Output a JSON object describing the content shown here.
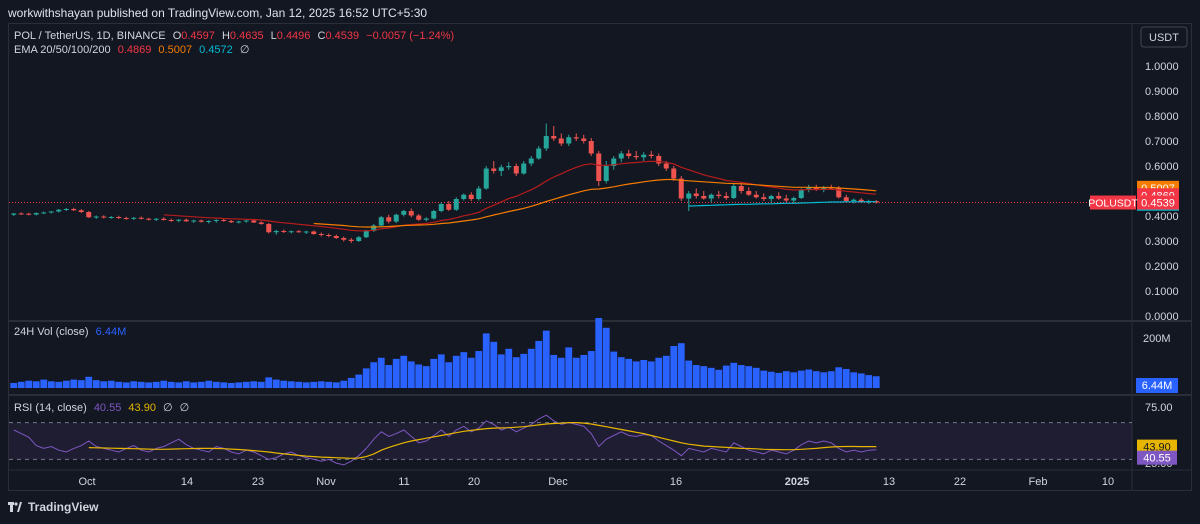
{
  "header": {
    "publisher": "workwithshayan published on TradingView.com, Jan 12, 2025 16:52 UTC+5:30"
  },
  "legend": {
    "symbol": "POL / TetherUS, 1D, BINANCE",
    "o_label": "O",
    "o_value": "0.4597",
    "h_label": "H",
    "h_value": "0.4635",
    "l_label": "L",
    "l_value": "0.4496",
    "c_label": "C",
    "c_value": "0.4539",
    "change": "−0.0057 (−1.24%)",
    "ema_label": "EMA 20/50/100/200",
    "ema20": "0.4869",
    "ema50": "0.5007",
    "ema100": "0.4572",
    "ema_null": "∅"
  },
  "currency_button": "USDT",
  "price_axis": {
    "ticks": [
      "1.0000",
      "0.9000",
      "0.8000",
      "0.7000",
      "0.6000",
      "0.5000",
      "0.4000",
      "0.3000",
      "0.2000",
      "0.1000",
      "0.0000"
    ],
    "badges": [
      {
        "text": "0.5007",
        "value": 0.5007,
        "color": "#f57c00"
      },
      {
        "text": "0.4869",
        "value": 0.4869,
        "color": "#f23645"
      },
      {
        "text": "0.4572",
        "value": 0.4572,
        "color": "#00bcd4"
      },
      {
        "text": "0.4539",
        "value": 0.4539,
        "color": "#f23645"
      }
    ],
    "last_label": "POLUSDT"
  },
  "volume": {
    "label": "24H Vol (close)",
    "value": "6.44M",
    "axis_tick": "200M",
    "last_badge": "6.44M"
  },
  "rsi": {
    "label": "RSI (14, close)",
    "value1": "40.55",
    "value2": "43.90",
    "null1": "∅",
    "null2": "∅",
    "axis_ticks": [
      "75.00",
      "25.00"
    ],
    "badge_ma": "43.90",
    "badge_rsi": "40.55"
  },
  "time_axis": [
    "Oct",
    "14",
    "23",
    "Nov",
    "11",
    "20",
    "Dec",
    "16",
    "2025",
    "13",
    "22",
    "Feb",
    "10"
  ],
  "footer": {
    "brand": "TradingView"
  },
  "colors": {
    "up": "#26a69a",
    "down": "#ef5350",
    "volume": "#2962ff",
    "ema20": "#b71c1c",
    "ema50": "#f57c00",
    "ema100": "#00bcd4",
    "rsi": "#7e57c2",
    "rsi_ma": "#e6b500"
  },
  "chart_data": {
    "type": "candlestick",
    "price_range": [
      0,
      1.0
    ],
    "volume_max_m": 250,
    "rsi_range": [
      0,
      100
    ],
    "start_date": "2024-09-28",
    "candles": [
      [
        0.405,
        0.412,
        0.4,
        0.41
      ],
      [
        0.41,
        0.415,
        0.405,
        0.409
      ],
      [
        0.409,
        0.413,
        0.403,
        0.406
      ],
      [
        0.406,
        0.414,
        0.402,
        0.412
      ],
      [
        0.412,
        0.418,
        0.408,
        0.414
      ],
      [
        0.414,
        0.42,
        0.41,
        0.418
      ],
      [
        0.418,
        0.428,
        0.414,
        0.425
      ],
      [
        0.425,
        0.432,
        0.42,
        0.428
      ],
      [
        0.428,
        0.433,
        0.42,
        0.423
      ],
      [
        0.423,
        0.427,
        0.412,
        0.416
      ],
      [
        0.416,
        0.42,
        0.392,
        0.395
      ],
      [
        0.395,
        0.402,
        0.388,
        0.398
      ],
      [
        0.398,
        0.403,
        0.39,
        0.394
      ],
      [
        0.394,
        0.4,
        0.389,
        0.396
      ],
      [
        0.396,
        0.401,
        0.388,
        0.392
      ],
      [
        0.392,
        0.397,
        0.385,
        0.39
      ],
      [
        0.39,
        0.396,
        0.384,
        0.393
      ],
      [
        0.393,
        0.398,
        0.386,
        0.389
      ],
      [
        0.389,
        0.393,
        0.382,
        0.386
      ],
      [
        0.386,
        0.392,
        0.38,
        0.389
      ],
      [
        0.389,
        0.395,
        0.382,
        0.384
      ],
      [
        0.384,
        0.39,
        0.377,
        0.381
      ],
      [
        0.381,
        0.388,
        0.375,
        0.385
      ],
      [
        0.385,
        0.39,
        0.376,
        0.379
      ],
      [
        0.379,
        0.385,
        0.372,
        0.382
      ],
      [
        0.382,
        0.386,
        0.374,
        0.377
      ],
      [
        0.377,
        0.383,
        0.37,
        0.38
      ],
      [
        0.38,
        0.387,
        0.373,
        0.384
      ],
      [
        0.384,
        0.389,
        0.377,
        0.38
      ],
      [
        0.38,
        0.384,
        0.372,
        0.375
      ],
      [
        0.375,
        0.381,
        0.37,
        0.378
      ],
      [
        0.378,
        0.385,
        0.373,
        0.382
      ],
      [
        0.382,
        0.386,
        0.372,
        0.374
      ],
      [
        0.374,
        0.379,
        0.365,
        0.368
      ],
      [
        0.368,
        0.372,
        0.33,
        0.335
      ],
      [
        0.335,
        0.345,
        0.325,
        0.34
      ],
      [
        0.34,
        0.346,
        0.332,
        0.336
      ],
      [
        0.336,
        0.342,
        0.33,
        0.339
      ],
      [
        0.339,
        0.344,
        0.333,
        0.335
      ],
      [
        0.335,
        0.341,
        0.328,
        0.338
      ],
      [
        0.338,
        0.342,
        0.325,
        0.328
      ],
      [
        0.328,
        0.334,
        0.318,
        0.324
      ],
      [
        0.324,
        0.33,
        0.315,
        0.32
      ],
      [
        0.32,
        0.326,
        0.308,
        0.312
      ],
      [
        0.312,
        0.318,
        0.298,
        0.305
      ],
      [
        0.305,
        0.312,
        0.292,
        0.3
      ],
      [
        0.3,
        0.32,
        0.296,
        0.315
      ],
      [
        0.315,
        0.345,
        0.312,
        0.34
      ],
      [
        0.34,
        0.368,
        0.336,
        0.362
      ],
      [
        0.362,
        0.4,
        0.358,
        0.395
      ],
      [
        0.395,
        0.405,
        0.37,
        0.378
      ],
      [
        0.378,
        0.41,
        0.372,
        0.405
      ],
      [
        0.405,
        0.425,
        0.398,
        0.42
      ],
      [
        0.42,
        0.43,
        0.395,
        0.402
      ],
      [
        0.402,
        0.408,
        0.38,
        0.385
      ],
      [
        0.385,
        0.395,
        0.378,
        0.39
      ],
      [
        0.39,
        0.425,
        0.386,
        0.42
      ],
      [
        0.42,
        0.455,
        0.415,
        0.448
      ],
      [
        0.448,
        0.46,
        0.42,
        0.425
      ],
      [
        0.425,
        0.475,
        0.42,
        0.468
      ],
      [
        0.468,
        0.49,
        0.462,
        0.485
      ],
      [
        0.485,
        0.495,
        0.46,
        0.468
      ],
      [
        0.468,
        0.52,
        0.462,
        0.51
      ],
      [
        0.51,
        0.6,
        0.505,
        0.59
      ],
      [
        0.59,
        0.62,
        0.57,
        0.58
      ],
      [
        0.58,
        0.605,
        0.56,
        0.595
      ],
      [
        0.595,
        0.615,
        0.585,
        0.6
      ],
      [
        0.6,
        0.61,
        0.56,
        0.57
      ],
      [
        0.57,
        0.62,
        0.565,
        0.61
      ],
      [
        0.61,
        0.64,
        0.6,
        0.63
      ],
      [
        0.63,
        0.68,
        0.625,
        0.67
      ],
      [
        0.67,
        0.77,
        0.66,
        0.72
      ],
      [
        0.72,
        0.76,
        0.7,
        0.71
      ],
      [
        0.71,
        0.73,
        0.68,
        0.69
      ],
      [
        0.69,
        0.725,
        0.68,
        0.715
      ],
      [
        0.715,
        0.73,
        0.7,
        0.71
      ],
      [
        0.71,
        0.725,
        0.69,
        0.7
      ],
      [
        0.7,
        0.712,
        0.64,
        0.65
      ],
      [
        0.65,
        0.66,
        0.52,
        0.54
      ],
      [
        0.54,
        0.62,
        0.53,
        0.6
      ],
      [
        0.6,
        0.64,
        0.585,
        0.63
      ],
      [
        0.63,
        0.66,
        0.615,
        0.65
      ],
      [
        0.65,
        0.665,
        0.63,
        0.64
      ],
      [
        0.64,
        0.66,
        0.625,
        0.635
      ],
      [
        0.635,
        0.655,
        0.62,
        0.645
      ],
      [
        0.645,
        0.66,
        0.63,
        0.64
      ],
      [
        0.64,
        0.65,
        0.6,
        0.61
      ],
      [
        0.61,
        0.62,
        0.58,
        0.59
      ],
      [
        0.59,
        0.6,
        0.54,
        0.55
      ],
      [
        0.55,
        0.56,
        0.46,
        0.47
      ],
      [
        0.47,
        0.5,
        0.42,
        0.49
      ],
      [
        0.49,
        0.51,
        0.47,
        0.48
      ],
      [
        0.48,
        0.5,
        0.465,
        0.47
      ],
      [
        0.47,
        0.49,
        0.455,
        0.485
      ],
      [
        0.485,
        0.5,
        0.47,
        0.48
      ],
      [
        0.48,
        0.495,
        0.465,
        0.472
      ],
      [
        0.472,
        0.53,
        0.468,
        0.52
      ],
      [
        0.52,
        0.535,
        0.49,
        0.5
      ],
      [
        0.5,
        0.515,
        0.48,
        0.485
      ],
      [
        0.485,
        0.5,
        0.47,
        0.475
      ],
      [
        0.475,
        0.49,
        0.46,
        0.468
      ],
      [
        0.468,
        0.485,
        0.455,
        0.48
      ],
      [
        0.48,
        0.495,
        0.465,
        0.47
      ],
      [
        0.47,
        0.485,
        0.455,
        0.462
      ],
      [
        0.462,
        0.478,
        0.45,
        0.472
      ],
      [
        0.472,
        0.51,
        0.468,
        0.505
      ],
      [
        0.505,
        0.525,
        0.495,
        0.515
      ],
      [
        0.515,
        0.525,
        0.5,
        0.505
      ],
      [
        0.505,
        0.52,
        0.495,
        0.515
      ],
      [
        0.515,
        0.525,
        0.505,
        0.51
      ],
      [
        0.51,
        0.52,
        0.47,
        0.475
      ],
      [
        0.475,
        0.485,
        0.455,
        0.46
      ],
      [
        0.46,
        0.47,
        0.45,
        0.465
      ],
      [
        0.465,
        0.472,
        0.452,
        0.455
      ],
      [
        0.455,
        0.465,
        0.448,
        0.46
      ],
      [
        0.4597,
        0.4635,
        0.4496,
        0.4539
      ]
    ],
    "volume_m": [
      18,
      22,
      26,
      24,
      30,
      24,
      22,
      26,
      30,
      28,
      40,
      28,
      24,
      26,
      22,
      20,
      24,
      22,
      20,
      22,
      26,
      22,
      20,
      24,
      20,
      22,
      26,
      22,
      20,
      18,
      20,
      22,
      24,
      22,
      38,
      30,
      26,
      24,
      22,
      20,
      22,
      24,
      22,
      20,
      26,
      36,
      48,
      70,
      92,
      108,
      82,
      104,
      115,
      95,
      84,
      78,
      104,
      120,
      92,
      115,
      128,
      108,
      132,
      195,
      165,
      120,
      140,
      110,
      122,
      140,
      168,
      205,
      118,
      108,
      145,
      108,
      118,
      132,
      250,
      215,
      130,
      110,
      104,
      95,
      100,
      95,
      108,
      115,
      150,
      160,
      98,
      82,
      78,
      72,
      65,
      80,
      90,
      82,
      78,
      72,
      62,
      58,
      54,
      60,
      56,
      62,
      66,
      60,
      56,
      60,
      74,
      68,
      56,
      52,
      46,
      42
    ],
    "rsi_values": [
      62,
      58,
      54,
      45,
      42,
      44,
      40,
      38,
      42,
      45,
      50,
      44,
      42,
      40,
      38,
      42,
      45,
      40,
      38,
      42,
      44,
      48,
      52,
      46,
      42,
      40,
      38,
      44,
      42,
      38,
      36,
      40,
      38,
      34,
      30,
      32,
      36,
      38,
      34,
      32,
      30,
      28,
      30,
      26,
      24,
      28,
      34,
      42,
      52,
      60,
      55,
      58,
      62,
      55,
      48,
      50,
      56,
      62,
      55,
      62,
      66,
      60,
      64,
      72,
      68,
      62,
      65,
      60,
      64,
      68,
      74,
      78,
      72,
      68,
      70,
      68,
      66,
      58,
      44,
      52,
      56,
      60,
      56,
      55,
      57,
      56,
      50,
      45,
      40,
      34,
      42,
      40,
      38,
      42,
      40,
      38,
      48,
      44,
      40,
      38,
      36,
      40,
      38,
      36,
      40,
      46,
      50,
      48,
      50,
      48,
      42,
      38,
      40,
      38,
      40,
      40.55
    ],
    "rsi_ma": [
      43.2,
      43.3,
      43.4,
      43.5,
      43.4,
      43.3,
      43.2,
      43.1,
      43.0,
      42.9,
      42.8,
      42.6,
      42.4,
      42.2,
      42.0,
      41.8,
      41.6,
      41.4,
      41.2,
      41.0,
      41.0,
      41.2,
      41.4,
      41.6,
      41.8,
      42.0,
      42.0,
      41.8,
      41.6,
      41.2,
      40.8,
      40.2,
      39.6,
      38.8,
      38.0,
      37.0,
      36.0,
      35.2,
      34.4,
      33.6,
      33.0,
      32.5,
      32.2,
      31.8,
      31.5,
      31.2,
      31.5,
      33.0,
      36.0,
      40.0,
      43.0,
      45.5,
      48.0,
      50.0,
      51.5,
      53.0,
      54.5,
      56.0,
      57.5,
      59.0,
      60.5,
      61.5,
      62.5,
      63.5,
      64.0,
      64.2,
      64.5,
      65.0,
      65.5,
      66.5,
      67.5,
      68.5,
      69.0,
      69.5,
      70.0,
      70.0,
      69.5,
      68.5,
      67.0,
      65.5,
      64.0,
      62.5,
      61.0,
      59.5,
      58.0,
      56.0,
      54.0,
      52.0,
      50.0,
      48.0,
      46.5,
      45.5,
      44.5,
      44.0,
      43.5,
      43.0,
      42.5,
      42.0,
      41.8,
      41.5,
      41.0,
      40.8,
      40.6,
      40.5,
      40.6,
      41.0,
      41.5,
      42.0,
      42.8,
      43.5,
      43.9,
      44.0,
      44.0,
      43.9,
      43.9,
      43.9
    ],
    "ema20": [
      null,
      null,
      null,
      null,
      null,
      null,
      null,
      null,
      null,
      null,
      null,
      null,
      null,
      null,
      null,
      null,
      null,
      null,
      null,
      null,
      0.405,
      0.403,
      0.401,
      0.399,
      0.397,
      0.395,
      0.393,
      0.392,
      0.39,
      0.389,
      0.388,
      0.387,
      0.386,
      0.384,
      0.38,
      0.376,
      0.373,
      0.37,
      0.367,
      0.364,
      0.361,
      0.358,
      0.355,
      0.351,
      0.347,
      0.343,
      0.341,
      0.341,
      0.343,
      0.349,
      0.352,
      0.357,
      0.363,
      0.366,
      0.368,
      0.37,
      0.375,
      0.382,
      0.386,
      0.393,
      0.401,
      0.407,
      0.415,
      0.431,
      0.443,
      0.457,
      0.47,
      0.479,
      0.492,
      0.505,
      0.521,
      0.54,
      0.556,
      0.569,
      0.583,
      0.595,
      0.605,
      0.609,
      0.603,
      0.603,
      0.605,
      0.609,
      0.612,
      0.614,
      0.617,
      0.619,
      0.618,
      0.615,
      0.608,
      0.595,
      0.585,
      0.575,
      0.565,
      0.557,
      0.55,
      0.542,
      0.539,
      0.535,
      0.53,
      0.525,
      0.52,
      0.516,
      0.512,
      0.507,
      0.504,
      0.505,
      0.506,
      0.506,
      0.507,
      0.507,
      0.504,
      0.499,
      0.496,
      0.493,
      0.4895,
      0.4869
    ],
    "ema50": [
      null,
      null,
      null,
      null,
      null,
      null,
      null,
      null,
      null,
      null,
      null,
      null,
      null,
      null,
      null,
      null,
      null,
      null,
      null,
      null,
      null,
      null,
      null,
      null,
      null,
      null,
      null,
      null,
      null,
      null,
      null,
      null,
      null,
      null,
      null,
      null,
      null,
      null,
      null,
      null,
      0.37,
      0.368,
      0.366,
      0.364,
      0.362,
      0.359,
      0.357,
      0.356,
      0.356,
      0.357,
      0.358,
      0.36,
      0.362,
      0.363,
      0.364,
      0.365,
      0.367,
      0.37,
      0.372,
      0.376,
      0.38,
      0.384,
      0.389,
      0.397,
      0.404,
      0.411,
      0.418,
      0.424,
      0.431,
      0.439,
      0.448,
      0.458,
      0.467,
      0.476,
      0.485,
      0.493,
      0.501,
      0.507,
      0.508,
      0.512,
      0.517,
      0.523,
      0.528,
      0.532,
      0.537,
      0.541,
      0.544,
      0.546,
      0.546,
      0.543,
      0.541,
      0.539,
      0.537,
      0.535,
      0.533,
      0.531,
      0.53,
      0.529,
      0.527,
      0.525,
      0.523,
      0.521,
      0.519,
      0.517,
      0.515,
      0.515,
      0.515,
      0.514,
      0.514,
      0.514,
      0.512,
      0.51,
      0.508,
      0.506,
      0.5035,
      0.5007
    ],
    "ema100": [
      null,
      null,
      null,
      null,
      null,
      null,
      null,
      null,
      null,
      null,
      null,
      null,
      null,
      null,
      null,
      null,
      null,
      null,
      null,
      null,
      null,
      null,
      null,
      null,
      null,
      null,
      null,
      null,
      null,
      null,
      null,
      null,
      null,
      null,
      null,
      null,
      null,
      null,
      null,
      null,
      null,
      null,
      null,
      null,
      null,
      null,
      null,
      null,
      null,
      null,
      null,
      null,
      null,
      null,
      null,
      null,
      null,
      null,
      null,
      null,
      null,
      null,
      null,
      null,
      null,
      null,
      null,
      null,
      null,
      null,
      null,
      null,
      null,
      null,
      null,
      null,
      null,
      null,
      null,
      null,
      null,
      null,
      null,
      null,
      null,
      null,
      null,
      null,
      null,
      null,
      0.44,
      0.441,
      0.442,
      0.443,
      0.444,
      0.445,
      0.446,
      0.447,
      0.447,
      0.448,
      0.449,
      0.449,
      0.45,
      0.451,
      0.451,
      0.452,
      0.453,
      0.454,
      0.455,
      0.456,
      0.456,
      0.457,
      0.457,
      0.457,
      0.4571,
      0.4572
    ]
  }
}
